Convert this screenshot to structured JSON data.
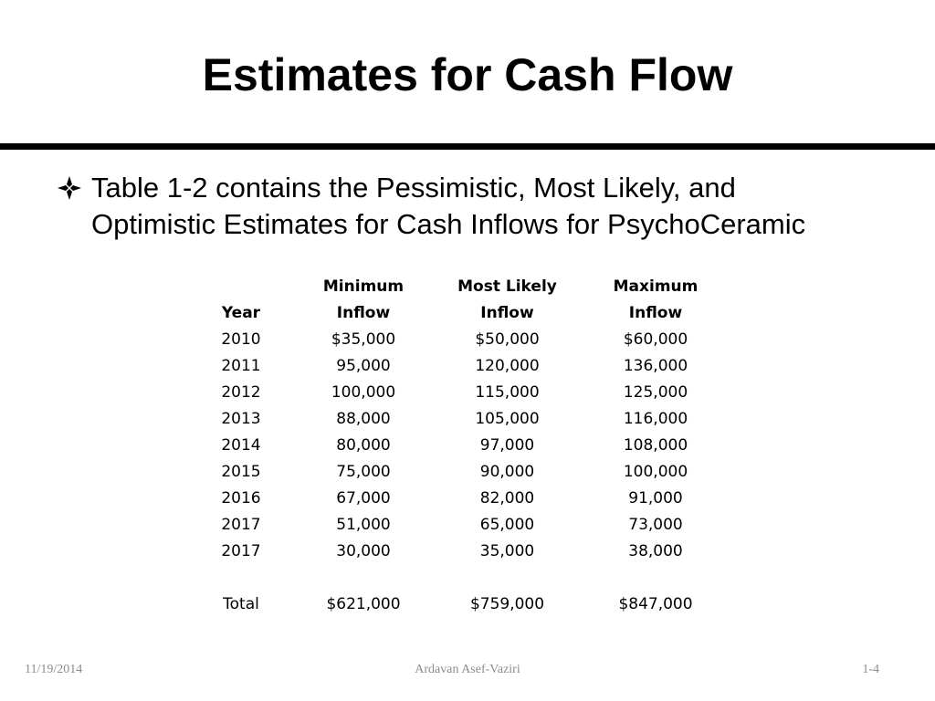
{
  "slide": {
    "title": "Estimates for Cash Flow",
    "bullet_icon": "diamond-bullet-icon",
    "bullet_line_1": "Table 1-2 contains the Pessimistic, Most Likely, and",
    "bullet_line_2": "Optimistic Estimates for Cash Inflows for PsychoCeramic"
  },
  "table": {
    "header_row_1": [
      "",
      "Minimum",
      "Most Likely",
      "Maximum"
    ],
    "header_row_2": [
      "Year",
      "Inflow",
      "Inflow",
      "Inflow"
    ],
    "rows": [
      [
        "2010",
        "$35,000",
        "$50,000",
        "$60,000"
      ],
      [
        "2011",
        "95,000",
        "120,000",
        "136,000"
      ],
      [
        "2012",
        "100,000",
        "115,000",
        "125,000"
      ],
      [
        "2013",
        "88,000",
        "105,000",
        "116,000"
      ],
      [
        "2014",
        "80,000",
        "97,000",
        "108,000"
      ],
      [
        "2015",
        "75,000",
        "90,000",
        "100,000"
      ],
      [
        "2016",
        "67,000",
        "82,000",
        "91,000"
      ],
      [
        "2017",
        "51,000",
        "65,000",
        "73,000"
      ],
      [
        "2017",
        "30,000",
        "35,000",
        "38,000"
      ]
    ],
    "total_row": [
      "Total",
      "$621,000",
      "$759,000",
      "$847,000"
    ]
  },
  "footer": {
    "date": "11/19/2014",
    "author": "Ardavan Asef-Vaziri",
    "page": "1-4"
  },
  "colors": {
    "text": "#000000",
    "rule": "#000000",
    "footer_text": "#8c8c8c",
    "background": "#ffffff"
  }
}
